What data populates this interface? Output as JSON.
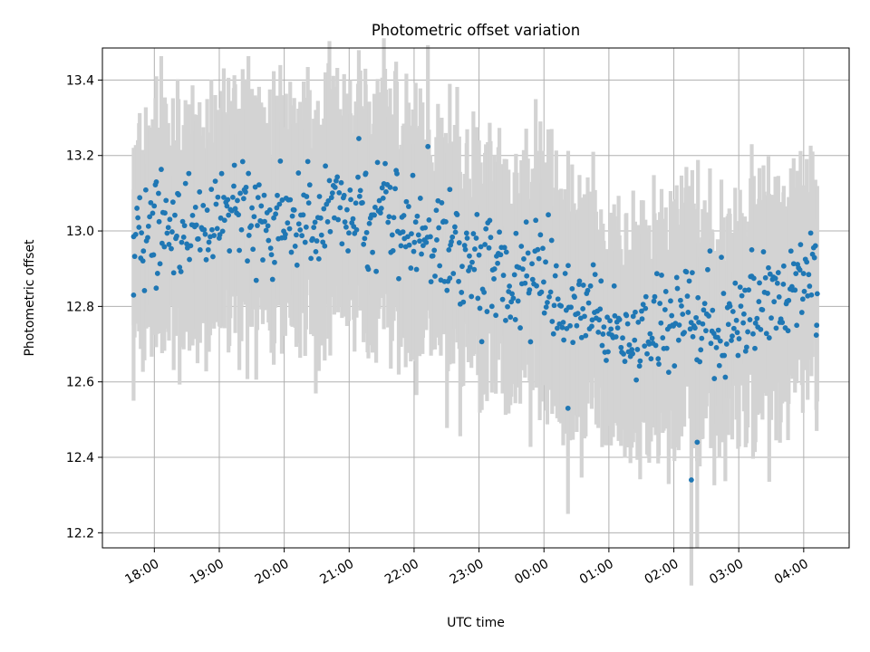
{
  "chart_data": {
    "type": "scatter",
    "title": "Photometric offset variation",
    "xlabel": "UTC time",
    "ylabel": "Photometric offset",
    "grid": true,
    "x_unit": "hours since 18:00 UTC",
    "xlim": [
      -0.8,
      10.7
    ],
    "ylim": [
      12.16,
      13.485
    ],
    "xticks": [
      0,
      1,
      2,
      3,
      4,
      5,
      6,
      7,
      8,
      9,
      10
    ],
    "xtick_labels": [
      "18:00",
      "19:00",
      "20:00",
      "21:00",
      "22:00",
      "23:00",
      "00:00",
      "01:00",
      "02:00",
      "03:00",
      "04:00"
    ],
    "yticks": [
      12.2,
      12.4,
      12.6,
      12.8,
      13.0,
      13.2,
      13.4
    ],
    "ytick_labels": [
      "12.2",
      "12.4",
      "12.6",
      "12.8",
      "13.0",
      "13.2",
      "13.4"
    ],
    "x_range": [
      -0.32,
      10.22
    ],
    "n_points": 700,
    "trend_anchors": {
      "x": [
        -0.3,
        0.5,
        1.5,
        2.1,
        2.8,
        3.4,
        4.2,
        5.0,
        5.8,
        6.5,
        7.0,
        7.5,
        8.0,
        8.5,
        9.0,
        9.5,
        10.2
      ],
      "y": [
        12.98,
        13.02,
        13.04,
        13.0,
        13.06,
        13.08,
        12.98,
        12.9,
        12.86,
        12.8,
        12.73,
        12.72,
        12.78,
        12.74,
        12.76,
        12.8,
        12.88
      ]
    },
    "scatter_std": 0.072,
    "error_bar_mean": 0.24,
    "error_bar_range": [
      0.14,
      0.42
    ],
    "highlighted_points": [
      {
        "x": -0.32,
        "y": 12.83
      },
      {
        "x": 0.03,
        "y": 13.13
      },
      {
        "x": 6.37,
        "y": 12.53
      },
      {
        "x": 8.27,
        "y": 12.34
      },
      {
        "x": 8.36,
        "y": 12.44
      },
      {
        "x": 3.25,
        "y": 13.15
      },
      {
        "x": 4.55,
        "y": 13.11
      },
      {
        "x": 9.2,
        "y": 12.95
      },
      {
        "x": 10.2,
        "y": 12.75
      }
    ],
    "colors": {
      "points": "#1f77b4",
      "error_bars": "#d3d3d3",
      "grid": "#b0b0b0",
      "axes": "#000000"
    }
  }
}
